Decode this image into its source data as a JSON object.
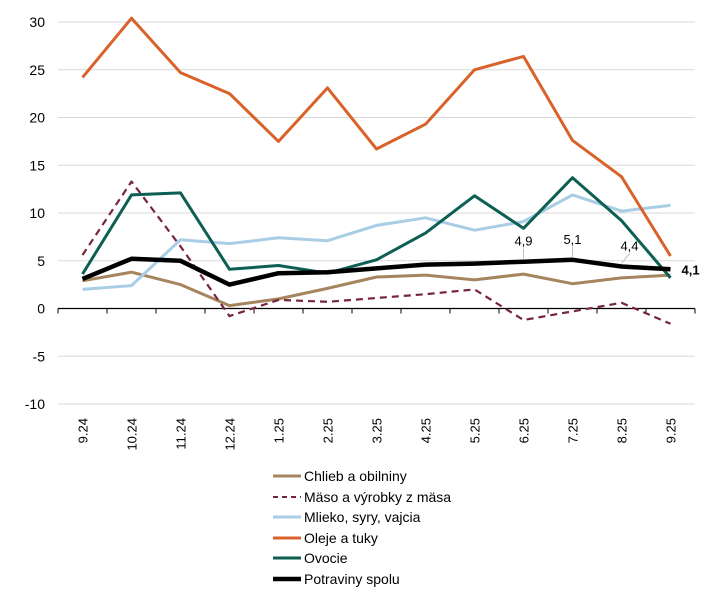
{
  "chart_data": {
    "type": "line",
    "title": "",
    "xlabel": "",
    "ylabel": "",
    "ylim": [
      -10,
      30
    ],
    "yticks": [
      30,
      25,
      20,
      15,
      10,
      5,
      0,
      -5,
      -10
    ],
    "ytick_labels": [
      "30",
      "25",
      "20",
      "15",
      "10",
      "5",
      "0",
      "-5",
      "-10"
    ],
    "grid": true,
    "legend_position": "bottom",
    "categories": [
      "9.24",
      "10.24",
      "11.24",
      "12.24",
      "1.25",
      "2.25",
      "3.25",
      "4.25",
      "5.25",
      "6.25",
      "7.25",
      "8.25",
      "9.25"
    ],
    "series": [
      {
        "name": "Chlieb a obilniny",
        "color": "#A6845E",
        "dash": "solid",
        "bold": false,
        "values": [
          2.9,
          3.8,
          2.5,
          0.3,
          1.0,
          2.1,
          3.3,
          3.5,
          3.0,
          3.6,
          2.6,
          3.2,
          3.5
        ]
      },
      {
        "name": "Mäso a výrobky z mäsa",
        "color": "#76243F",
        "dash": "dashed",
        "bold": false,
        "values": [
          5.6,
          13.3,
          6.5,
          -0.8,
          0.9,
          0.7,
          1.1,
          1.5,
          2.0,
          -1.2,
          -0.3,
          0.6,
          -1.6
        ]
      },
      {
        "name": "Mlieko, syry, vajcia",
        "color": "#A8CDE4",
        "dash": "solid",
        "bold": false,
        "values": [
          2.0,
          2.4,
          7.2,
          6.8,
          7.4,
          7.1,
          8.7,
          9.5,
          8.2,
          9.1,
          11.9,
          10.2,
          10.8
        ]
      },
      {
        "name": "Oleje a tuky",
        "color": "#D8622A",
        "dash": "solid",
        "bold": false,
        "values": [
          24.2,
          30.4,
          24.7,
          22.5,
          17.5,
          23.1,
          16.7,
          19.3,
          25.0,
          26.4,
          17.6,
          13.8,
          5.5
        ]
      },
      {
        "name": "Ovocie",
        "color": "#0D5F54",
        "dash": "solid",
        "bold": false,
        "values": [
          3.6,
          11.9,
          12.1,
          4.1,
          4.5,
          3.7,
          5.1,
          7.9,
          11.8,
          8.4,
          13.7,
          9.2,
          3.2
        ]
      },
      {
        "name": "Potraviny spolu",
        "color": "#000000",
        "dash": "solid",
        "bold": true,
        "values": [
          3.1,
          5.2,
          5.0,
          2.5,
          3.7,
          3.8,
          4.2,
          4.6,
          4.7,
          4.9,
          5.1,
          4.4,
          4.1
        ]
      }
    ],
    "annotations": [
      {
        "series": "Potraviny spolu",
        "category": "6.25",
        "text": "4,9",
        "bold": false
      },
      {
        "series": "Potraviny spolu",
        "category": "7.25",
        "text": "5,1",
        "bold": false
      },
      {
        "series": "Potraviny spolu",
        "category": "8.25",
        "text": "4,4",
        "bold": false
      },
      {
        "series": "Potraviny spolu",
        "category": "9.25",
        "text": "4,1",
        "bold": true
      }
    ]
  }
}
